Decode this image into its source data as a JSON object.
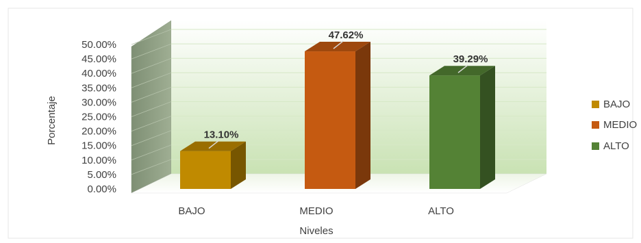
{
  "chart_data": {
    "type": "bar",
    "categories": [
      "BAJO",
      "MEDIO",
      "ALTO"
    ],
    "values": [
      13.1,
      47.62,
      39.29
    ],
    "data_labels": [
      "13.10%",
      "47.62%",
      "39.29%"
    ],
    "colors": [
      "#c08a00",
      "#c55a11",
      "#548235"
    ],
    "xlabel": "Niveles",
    "ylabel": "Porcentaje",
    "ylim": [
      0,
      50
    ],
    "yticks": [
      0,
      5,
      10,
      15,
      20,
      25,
      30,
      35,
      40,
      45,
      50
    ],
    "ytick_labels": [
      "0.00%",
      "5.00%",
      "10.00%",
      "15.00%",
      "20.00%",
      "25.00%",
      "30.00%",
      "35.00%",
      "40.00%",
      "45.00%",
      "50.00%"
    ],
    "legend": {
      "position": "right",
      "entries": [
        "BAJO",
        "MEDIO",
        "ALTO"
      ]
    },
    "style": "3d-column",
    "grid": true
  }
}
